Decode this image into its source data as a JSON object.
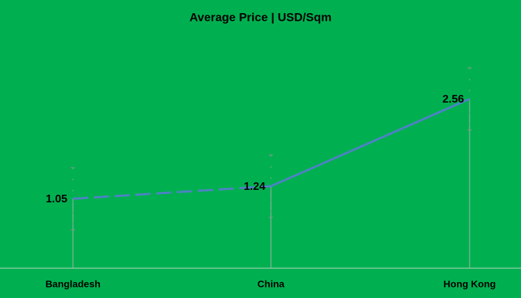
{
  "chart_data": {
    "type": "line",
    "title": "Average Price | USD/Sqm",
    "categories": [
      "Bangladesh",
      "China",
      "Hong Kong"
    ],
    "values": [
      1.05,
      1.24,
      2.56
    ],
    "errors": [
      0.47,
      0.47,
      0.47
    ],
    "color": "#4f81c7",
    "background": "#00b050",
    "ylim": [
      0,
      3.5
    ],
    "dashed_segments": [
      0
    ],
    "drop_lines": true
  }
}
